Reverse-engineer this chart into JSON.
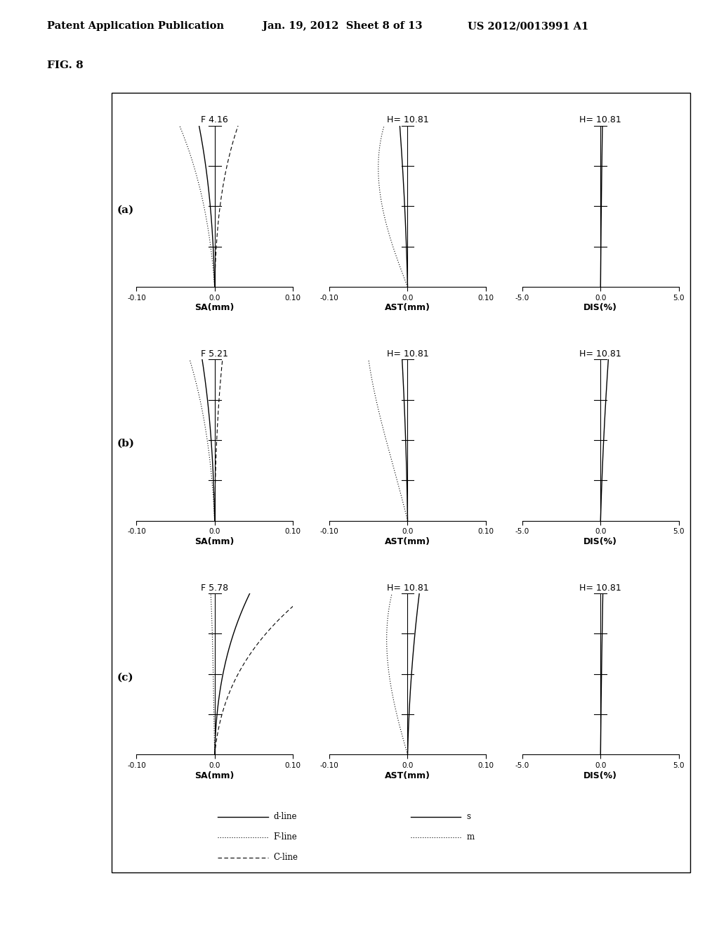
{
  "header_left": "Patent Application Publication",
  "header_mid": "Jan. 19, 2012  Sheet 8 of 13",
  "header_right": "US 2012/0013991 A1",
  "fig_label": "FIG. 8",
  "rows": [
    "(a)",
    "(b)",
    "(c)"
  ],
  "sa_titles": [
    "F 4.16",
    "F 5.21",
    "F 5.78"
  ],
  "ast_titles": [
    "H= 10.81",
    "H= 10.81",
    "H= 10.81"
  ],
  "dis_titles": [
    "H= 10.81",
    "H= 10.81",
    "H= 10.81"
  ],
  "sa_xlabel": "SA(mm)",
  "ast_xlabel": "AST(mm)",
  "dis_xlabel": "DIS(%)",
  "sa_xlim": [
    -0.1,
    0.1
  ],
  "ast_xlim": [
    -0.1,
    0.1
  ],
  "dis_xlim": [
    -5.0,
    5.0
  ],
  "background_color": "#ffffff",
  "line_color": "#000000"
}
